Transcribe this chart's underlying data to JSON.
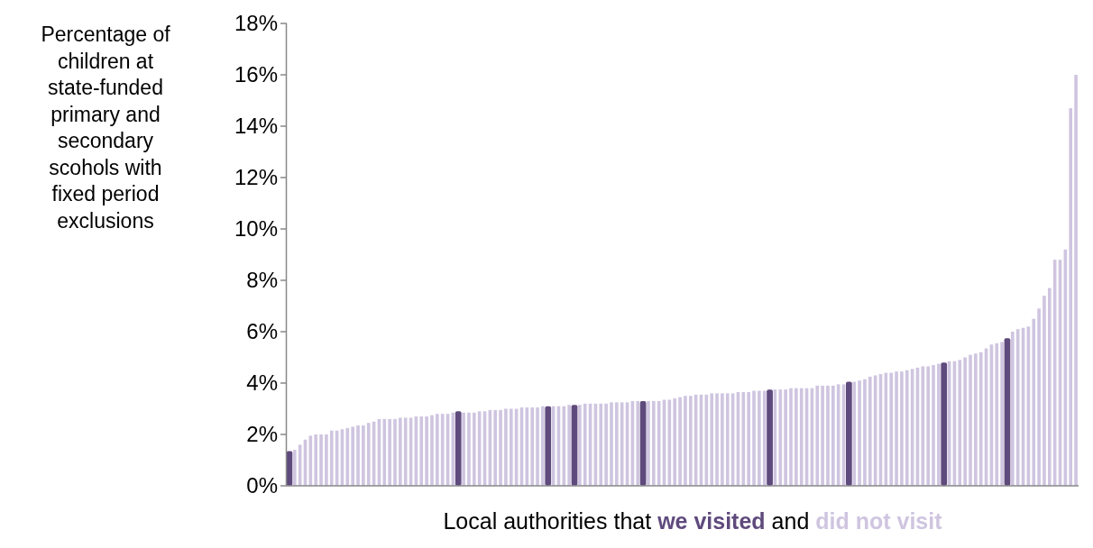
{
  "chart_data": {
    "type": "bar",
    "ylabel": "Percentage of children at state-funded primary and secondary scohols with fixed period exclusions",
    "xlabel": "Local authorities that",
    "annotations": [
      "and"
    ],
    "legend": "bottom",
    "categories": [
      null,
      null,
      null,
      null,
      null,
      null,
      null,
      null,
      null,
      null,
      null,
      null,
      null,
      null,
      null,
      null,
      null,
      null,
      null,
      null,
      null,
      null,
      null,
      null,
      null,
      null,
      null,
      null,
      null,
      null,
      null,
      null,
      null,
      null,
      null,
      null,
      null,
      null,
      null,
      null,
      null,
      null,
      null,
      null,
      null,
      null,
      null,
      null,
      null,
      null,
      null,
      null,
      null,
      null,
      null,
      null,
      null,
      null,
      null,
      null,
      null,
      null,
      null,
      null,
      null,
      null,
      null,
      null,
      null,
      null,
      null,
      null,
      null,
      null,
      null,
      null,
      null,
      null,
      null,
      null,
      null,
      null,
      null,
      null,
      null,
      null,
      null,
      null,
      null,
      null,
      null,
      null,
      null,
      null,
      null,
      null,
      null,
      null,
      null,
      null,
      null,
      null,
      null,
      null,
      null,
      null,
      null,
      null,
      null,
      null,
      null,
      null,
      null,
      null,
      null,
      null,
      null,
      null,
      null,
      null,
      null,
      null,
      null,
      null,
      null,
      null,
      null,
      null,
      null,
      null,
      null,
      null,
      null,
      null,
      null,
      null,
      null,
      null,
      null,
      null,
      null,
      null,
      null,
      null,
      null,
      null,
      null,
      null,
      null,
      null
    ],
    "series": [
      {
        "name": "we visited",
        "color": "#5f4a7d",
        "values": [
          1.35,
          null,
          null,
          null,
          null,
          null,
          null,
          null,
          null,
          null,
          null,
          null,
          null,
          null,
          null,
          null,
          null,
          null,
          null,
          null,
          null,
          null,
          null,
          null,
          null,
          null,
          null,
          null,
          null,
          null,
          null,
          null,
          2.9,
          null,
          null,
          null,
          null,
          null,
          null,
          null,
          null,
          null,
          null,
          null,
          null,
          null,
          null,
          null,
          null,
          3.1,
          null,
          null,
          null,
          null,
          3.15,
          null,
          null,
          null,
          null,
          null,
          null,
          null,
          null,
          null,
          null,
          null,
          null,
          3.3,
          null,
          null,
          null,
          null,
          null,
          null,
          null,
          null,
          null,
          null,
          null,
          null,
          null,
          null,
          null,
          null,
          null,
          null,
          null,
          null,
          null,
          null,
          null,
          3.75,
          null,
          null,
          null,
          null,
          null,
          null,
          null,
          null,
          null,
          null,
          null,
          null,
          null,
          null,
          4.05,
          null,
          null,
          null,
          null,
          null,
          null,
          null,
          null,
          null,
          null,
          null,
          null,
          null,
          null,
          null,
          null,
          null,
          4.8,
          null,
          null,
          null,
          null,
          null,
          null,
          null,
          null,
          null,
          null,
          null,
          5.75,
          null,
          null,
          null,
          null,
          null,
          null,
          null,
          null,
          null,
          null,
          null,
          null,
          null
        ]
      },
      {
        "name": "did not visit",
        "color": "#cfc5e0",
        "values": [
          null,
          1.4,
          1.6,
          1.8,
          1.95,
          2.0,
          2.0,
          2.0,
          2.15,
          2.15,
          2.2,
          2.25,
          2.3,
          2.35,
          2.35,
          2.45,
          2.5,
          2.6,
          2.6,
          2.6,
          2.6,
          2.65,
          2.65,
          2.65,
          2.7,
          2.7,
          2.7,
          2.75,
          2.8,
          2.8,
          2.8,
          2.85,
          null,
          2.85,
          2.85,
          2.85,
          2.9,
          2.9,
          2.95,
          2.95,
          2.95,
          3.0,
          3.0,
          3.0,
          3.05,
          3.05,
          3.05,
          3.05,
          3.1,
          null,
          3.1,
          3.1,
          3.1,
          3.15,
          null,
          3.15,
          3.2,
          3.2,
          3.2,
          3.2,
          3.2,
          3.25,
          3.25,
          3.25,
          3.25,
          3.3,
          3.3,
          null,
          3.3,
          3.3,
          3.3,
          3.35,
          3.35,
          3.4,
          3.45,
          3.5,
          3.5,
          3.55,
          3.55,
          3.55,
          3.6,
          3.6,
          3.6,
          3.6,
          3.6,
          3.65,
          3.65,
          3.65,
          3.7,
          3.7,
          3.7,
          null,
          3.75,
          3.75,
          3.75,
          3.8,
          3.8,
          3.8,
          3.8,
          3.8,
          3.9,
          3.9,
          3.9,
          3.9,
          3.95,
          3.95,
          null,
          4.05,
          4.1,
          4.15,
          4.25,
          4.3,
          4.35,
          4.4,
          4.4,
          4.45,
          4.45,
          4.5,
          4.55,
          4.6,
          4.65,
          4.65,
          4.7,
          4.75,
          null,
          4.85,
          4.85,
          4.9,
          5.0,
          5.1,
          5.15,
          5.2,
          5.35,
          5.5,
          5.55,
          5.6,
          null,
          6.0,
          6.1,
          6.15,
          6.2,
          6.5,
          6.9,
          7.4,
          7.7,
          8.8,
          8.8,
          9.2,
          14.7,
          16.0
        ]
      }
    ],
    "ylim": [
      0,
      18
    ],
    "yticks": [
      {
        "value": 0,
        "label": "0%"
      },
      {
        "value": 2,
        "label": "2%"
      },
      {
        "value": 4,
        "label": "4%"
      },
      {
        "value": 6,
        "label": "6%"
      },
      {
        "value": 8,
        "label": "8%"
      },
      {
        "value": 10,
        "label": "10%"
      },
      {
        "value": 12,
        "label": "12%"
      },
      {
        "value": 14,
        "label": "14%"
      },
      {
        "value": 16,
        "label": "16%"
      },
      {
        "value": 18,
        "label": "18%"
      }
    ],
    "grid": false
  }
}
